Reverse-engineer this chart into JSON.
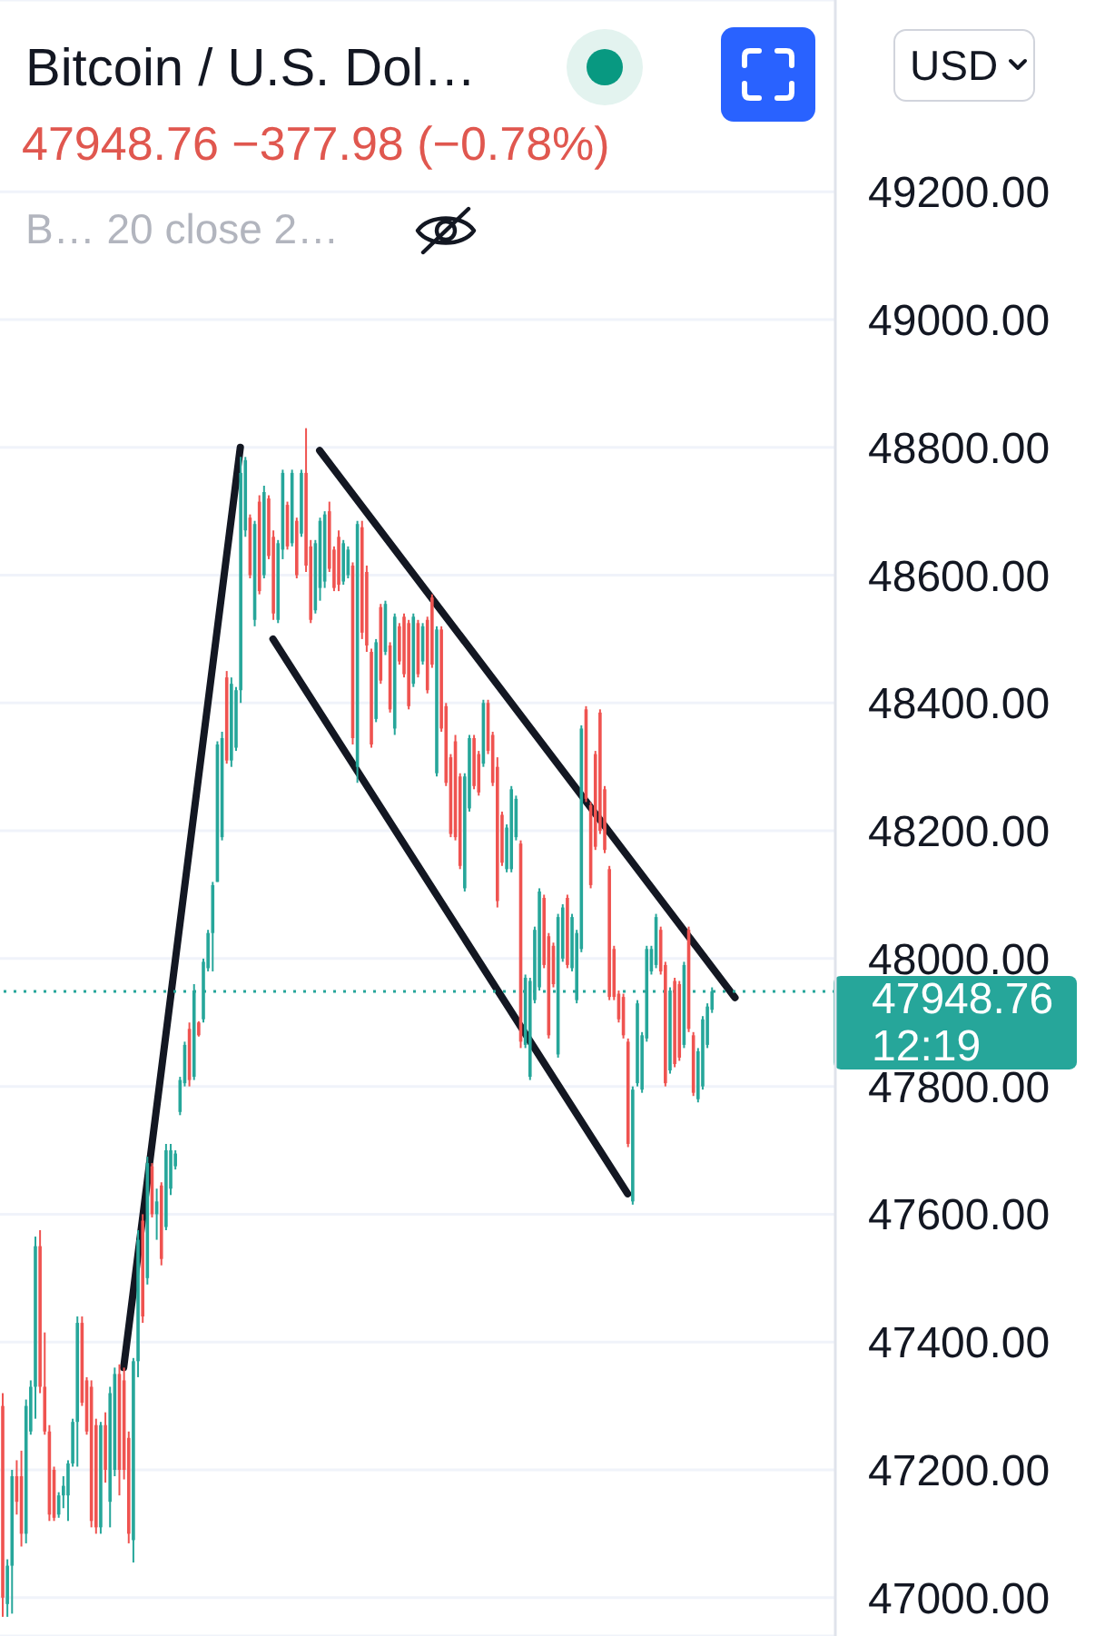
{
  "chart_data": {
    "type": "candlestick",
    "title": "Bitcoin / U.S. Dol…",
    "subtitle": "47948.76 −377.98 (−0.78%)",
    "ylabel": "USD",
    "annotations": [
      "B… 20 close 2…",
      "12:19"
    ],
    "categories": [
      null,
      null,
      null,
      null,
      null,
      null,
      null,
      null,
      null,
      null,
      null,
      null,
      null,
      null,
      null,
      null,
      null,
      null,
      null,
      null,
      null,
      null,
      null,
      null,
      null,
      null,
      null,
      null,
      null,
      null,
      null,
      null,
      null,
      null,
      null,
      null,
      null,
      null,
      null,
      null,
      null,
      null,
      null,
      null,
      null,
      null,
      null,
      null,
      null,
      null,
      null,
      null,
      null,
      null,
      null,
      null,
      null,
      null,
      null,
      null,
      null,
      null,
      null,
      null,
      null,
      null,
      null,
      null,
      null,
      null,
      null,
      null,
      null,
      null,
      null,
      null,
      null,
      null,
      null,
      null,
      null,
      null,
      null,
      null,
      null,
      null,
      null,
      null,
      null,
      null,
      null,
      null,
      null,
      null,
      null,
      null,
      null,
      null,
      null,
      null,
      null,
      null,
      null,
      null,
      null,
      null,
      null,
      null,
      null,
      null,
      null,
      null,
      null,
      null,
      null,
      null,
      null,
      null,
      null,
      null,
      null,
      null,
      null,
      null,
      null,
      null,
      null,
      null,
      null,
      null,
      null,
      null,
      null,
      null,
      null,
      null,
      null,
      null,
      null,
      null,
      null,
      null,
      null,
      null,
      null,
      null,
      null,
      null,
      null,
      null,
      null,
      null,
      null,
      null,
      null,
      null,
      null,
      null,
      null,
      null,
      null,
      null,
      null,
      null,
      null,
      null,
      null,
      null,
      null,
      null,
      null,
      null,
      null,
      null,
      null,
      null,
      null,
      null,
      null
    ],
    "ohlc": [
      [
        47300,
        47320,
        46970,
        47000
      ],
      [
        46990,
        47060,
        46970,
        47050
      ],
      [
        47050,
        47200,
        46975,
        47190
      ],
      [
        47190,
        47215,
        47130,
        47150
      ],
      [
        47190,
        47230,
        47080,
        47100
      ],
      [
        47100,
        47310,
        47085,
        47300
      ],
      [
        47260,
        47340,
        47255,
        47330
      ],
      [
        47330,
        47565,
        47280,
        47550
      ],
      [
        47550,
        47575,
        47320,
        47330
      ],
      [
        47330,
        47415,
        47255,
        47260
      ],
      [
        47260,
        47270,
        47120,
        47130
      ],
      [
        47200,
        47205,
        47120,
        47125
      ],
      [
        47130,
        47165,
        47125,
        47160
      ],
      [
        47160,
        47190,
        47140,
        47175
      ],
      [
        47160,
        47215,
        47120,
        47210
      ],
      [
        47210,
        47280,
        47205,
        47275
      ],
      [
        47275,
        47440,
        47205,
        47430
      ],
      [
        47430,
        47440,
        47300,
        47305
      ],
      [
        47340,
        47345,
        47255,
        47260
      ],
      [
        47330,
        47340,
        47110,
        47120
      ],
      [
        47270,
        47280,
        47100,
        47110
      ],
      [
        47110,
        47275,
        47100,
        47270
      ],
      [
        47270,
        47290,
        47180,
        47200
      ],
      [
        47150,
        47330,
        47110,
        47320
      ],
      [
        47200,
        47360,
        47190,
        47350
      ],
      [
        47350,
        47365,
        47160,
        47200
      ],
      [
        47340,
        47360,
        47185,
        47200
      ],
      [
        47250,
        47260,
        47085,
        47100
      ],
      [
        47090,
        47375,
        47055,
        47370
      ],
      [
        47370,
        47575,
        47345,
        47560
      ],
      [
        47590,
        47600,
        47430,
        47440
      ],
      [
        47500,
        47690,
        47490,
        47680
      ],
      [
        47675,
        47680,
        47595,
        47600
      ],
      [
        47600,
        47640,
        47560,
        47620
      ],
      [
        47645,
        47650,
        47520,
        47530
      ],
      [
        47580,
        47710,
        47575,
        47700
      ],
      [
        47640,
        47710,
        47630,
        47700
      ],
      [
        47675,
        47700,
        47670,
        47695
      ],
      [
        47760,
        47815,
        47755,
        47810
      ],
      [
        47805,
        47870,
        47800,
        47865
      ],
      [
        47890,
        47900,
        47800,
        47810
      ],
      [
        47815,
        47960,
        47810,
        47950
      ],
      [
        47900,
        47902,
        47878,
        47880
      ],
      [
        47905,
        48000,
        47900,
        47995
      ],
      [
        47985,
        48045,
        47980,
        48040
      ],
      [
        48040,
        48120,
        47980,
        48115
      ],
      [
        48120,
        48340,
        48120,
        48335
      ],
      [
        48190,
        48355,
        48185,
        48345
      ],
      [
        48440,
        48450,
        48305,
        48310
      ],
      [
        48310,
        48440,
        48300,
        48430
      ],
      [
        48330,
        48425,
        48325,
        48420
      ],
      [
        48420,
        48785,
        48400,
        48760
      ],
      [
        48670,
        48785,
        48660,
        48780
      ],
      [
        48690,
        48695,
        48595,
        48600
      ],
      [
        48530,
        48685,
        48520,
        48680
      ],
      [
        48715,
        48725,
        48570,
        48575
      ],
      [
        48600,
        48740,
        48595,
        48730
      ],
      [
        48720,
        48725,
        48625,
        48630
      ],
      [
        48660,
        48670,
        48530,
        48540
      ],
      [
        48530,
        48655,
        48525,
        48650
      ],
      [
        48640,
        48765,
        48625,
        48760
      ],
      [
        48710,
        48715,
        48640,
        48645
      ],
      [
        48650,
        48765,
        48645,
        48760
      ],
      [
        48685,
        48690,
        48595,
        48600
      ],
      [
        48665,
        48765,
        48660,
        48760
      ],
      [
        48760,
        48830,
        48605,
        48615
      ],
      [
        48645,
        48655,
        48525,
        48530
      ],
      [
        48545,
        48655,
        48540,
        48650
      ],
      [
        48580,
        48690,
        48560,
        48685
      ],
      [
        48590,
        48700,
        48580,
        48695
      ],
      [
        48700,
        48715,
        48605,
        48610
      ],
      [
        48640,
        48645,
        48575,
        48580
      ],
      [
        48660,
        48670,
        48575,
        48585
      ],
      [
        48590,
        48655,
        48585,
        48650
      ],
      [
        48600,
        48645,
        48595,
        48640
      ],
      [
        48615,
        48620,
        48335,
        48345
      ],
      [
        48300,
        48685,
        48275,
        48680
      ],
      [
        48675,
        48685,
        48500,
        48510
      ],
      [
        48605,
        48615,
        48480,
        48490
      ],
      [
        48480,
        48485,
        48330,
        48335
      ],
      [
        48375,
        48500,
        48370,
        48495
      ],
      [
        48550,
        48555,
        48430,
        48435
      ],
      [
        48480,
        48560,
        48475,
        48555
      ],
      [
        48490,
        48495,
        48385,
        48390
      ],
      [
        48360,
        48540,
        48350,
        48535
      ],
      [
        48520,
        48525,
        48460,
        48465
      ],
      [
        48535,
        48540,
        48440,
        48445
      ],
      [
        48525,
        48530,
        48390,
        48395
      ],
      [
        48430,
        48540,
        48425,
        48535
      ],
      [
        48525,
        48530,
        48440,
        48445
      ],
      [
        48465,
        48525,
        48460,
        48520
      ],
      [
        48530,
        48535,
        48415,
        48420
      ],
      [
        48565,
        48570,
        48455,
        48460
      ],
      [
        48290,
        48520,
        48285,
        48515
      ],
      [
        48515,
        48520,
        48355,
        48360
      ],
      [
        48395,
        48400,
        48270,
        48275
      ],
      [
        48315,
        48320,
        48190,
        48195
      ],
      [
        48340,
        48350,
        48185,
        48190
      ],
      [
        48285,
        48290,
        48140,
        48145
      ],
      [
        48110,
        48290,
        48105,
        48285
      ],
      [
        48235,
        48350,
        48230,
        48345
      ],
      [
        48345,
        48350,
        48265,
        48270
      ],
      [
        48320,
        48325,
        48255,
        48260
      ],
      [
        48305,
        48405,
        48300,
        48400
      ],
      [
        48400,
        48405,
        48320,
        48325
      ],
      [
        48350,
        48355,
        48270,
        48275
      ],
      [
        48300,
        48315,
        48080,
        48090
      ],
      [
        48225,
        48230,
        48145,
        48150
      ],
      [
        48140,
        48210,
        48135,
        48205
      ],
      [
        48140,
        48270,
        48135,
        48265
      ],
      [
        48190,
        48255,
        48185,
        48250
      ],
      [
        48180,
        48185,
        47860,
        47870
      ],
      [
        47865,
        47975,
        47860,
        47970
      ],
      [
        47815,
        47970,
        47810,
        47965
      ],
      [
        47935,
        48050,
        47930,
        48045
      ],
      [
        47955,
        48110,
        47950,
        48105
      ],
      [
        48095,
        48100,
        47985,
        47990
      ],
      [
        48035,
        48040,
        47875,
        47880
      ],
      [
        48020,
        48025,
        47955,
        47960
      ],
      [
        47850,
        48070,
        47845,
        48065
      ],
      [
        48000,
        48085,
        47995,
        48080
      ],
      [
        48095,
        48100,
        47985,
        47990
      ],
      [
        47985,
        48070,
        47980,
        48065
      ],
      [
        47935,
        48045,
        47930,
        48040
      ],
      [
        48015,
        48365,
        48010,
        48360
      ],
      [
        48390,
        48395,
        48245,
        48250
      ],
      [
        48240,
        48245,
        48110,
        48115
      ],
      [
        48320,
        48325,
        48170,
        48175
      ],
      [
        48385,
        48390,
        48195,
        48200
      ],
      [
        48265,
        48270,
        48165,
        48170
      ],
      [
        48140,
        48145,
        47935,
        47940
      ],
      [
        48015,
        48020,
        47935,
        47940
      ],
      [
        47945,
        47950,
        47900,
        47905
      ],
      [
        47940,
        47945,
        47875,
        47880
      ],
      [
        47870,
        47875,
        47705,
        47710
      ],
      [
        47620,
        47800,
        47615,
        47795
      ],
      [
        47805,
        47935,
        47800,
        47930
      ],
      [
        47795,
        47885,
        47790,
        47880
      ],
      [
        47875,
        48020,
        47870,
        48015
      ],
      [
        47980,
        48020,
        47975,
        48015
      ],
      [
        47990,
        48070,
        47985,
        48065
      ],
      [
        48045,
        48050,
        47975,
        47980
      ],
      [
        47990,
        47995,
        47800,
        47805
      ],
      [
        47825,
        47955,
        47820,
        47950
      ],
      [
        47965,
        47970,
        47830,
        47835
      ],
      [
        47960,
        47965,
        47840,
        47845
      ],
      [
        47865,
        47995,
        47860,
        47990
      ],
      [
        48045,
        48050,
        47885,
        47890
      ],
      [
        47880,
        47885,
        47785,
        47790
      ],
      [
        47780,
        47860,
        47775,
        47855
      ],
      [
        47800,
        47910,
        47795,
        47905
      ],
      [
        47865,
        47930,
        47860,
        47925
      ],
      [
        47920,
        47955,
        47915,
        47948.76
      ],
      null,
      null,
      null,
      null,
      null,
      null,
      null,
      null,
      null,
      null,
      null,
      null,
      null,
      null,
      null,
      null,
      null,
      null,
      null,
      null,
      null,
      null,
      null,
      null,
      null,
      null
    ],
    "colors": [
      "#ef5350",
      "#26a69a",
      "#26a69a",
      "#ef5350",
      "#ef5350",
      "#26a69a",
      "#26a69a",
      "#26a69a",
      "#ef5350",
      "#ef5350",
      "#ef5350",
      "#ef5350",
      "#26a69a",
      "#26a69a",
      "#26a69a",
      "#26a69a",
      "#26a69a",
      "#ef5350",
      "#ef5350",
      "#ef5350",
      "#ef5350",
      "#26a69a",
      "#ef5350",
      "#26a69a",
      "#26a69a",
      "#ef5350",
      "#ef5350",
      "#ef5350",
      "#26a69a",
      "#26a69a",
      "#ef5350",
      "#26a69a",
      "#ef5350",
      "#26a69a",
      "#ef5350",
      "#26a69a",
      "#26a69a",
      "#26a69a",
      "#26a69a",
      "#26a69a",
      "#ef5350",
      "#26a69a",
      "#ef5350",
      "#26a69a",
      "#26a69a",
      "#26a69a",
      "#26a69a",
      "#26a69a",
      "#ef5350",
      "#26a69a",
      "#26a69a",
      "#26a69a",
      "#26a69a",
      "#ef5350",
      "#26a69a",
      "#ef5350",
      "#26a69a",
      "#ef5350",
      "#ef5350",
      "#26a69a",
      "#26a69a",
      "#ef5350",
      "#26a69a",
      "#ef5350",
      "#26a69a",
      "#ef5350",
      "#ef5350",
      "#26a69a",
      "#26a69a",
      "#26a69a",
      "#ef5350",
      "#ef5350",
      "#ef5350",
      "#26a69a",
      "#26a69a",
      "#ef5350",
      "#26a69a",
      "#ef5350",
      "#ef5350",
      "#ef5350",
      "#26a69a",
      "#ef5350",
      "#26a69a",
      "#ef5350",
      "#26a69a",
      "#ef5350",
      "#ef5350",
      "#ef5350",
      "#26a69a",
      "#ef5350",
      "#26a69a",
      "#ef5350",
      "#ef5350",
      "#26a69a",
      "#ef5350",
      "#ef5350",
      "#ef5350",
      "#ef5350",
      "#ef5350",
      "#26a69a",
      "#26a69a",
      "#ef5350",
      "#ef5350",
      "#26a69a",
      "#ef5350",
      "#ef5350",
      "#ef5350",
      "#ef5350",
      "#26a69a",
      "#26a69a",
      "#26a69a",
      "#ef5350",
      "#26a69a",
      "#26a69a",
      "#26a69a",
      "#26a69a",
      "#ef5350",
      "#ef5350",
      "#ef5350",
      "#26a69a",
      "#26a69a",
      "#ef5350",
      "#26a69a",
      "#26a69a",
      "#26a69a",
      "#ef5350",
      "#ef5350",
      "#ef5350",
      "#ef5350",
      "#ef5350",
      "#ef5350",
      "#ef5350",
      "#ef5350",
      "#ef5350",
      "#ef5350",
      "#26a69a",
      "#26a69a",
      "#26a69a",
      "#26a69a",
      "#26a69a",
      "#26a69a",
      "#ef5350",
      "#ef5350",
      "#26a69a",
      "#ef5350",
      "#ef5350",
      "#26a69a",
      "#ef5350",
      "#ef5350",
      "#26a69a",
      "#26a69a",
      "#26a69a",
      "#26a69a",
      null,
      null,
      null,
      null,
      null,
      null,
      null,
      null,
      null,
      null,
      null,
      null,
      null,
      null,
      null,
      null,
      null,
      null,
      null,
      null,
      null,
      null,
      null,
      null,
      null,
      null
    ],
    "series": [
      {
        "type": "line",
        "color": "#131722",
        "values": [
          null,
          null,
          null,
          null,
          null,
          null,
          null,
          null,
          null,
          null,
          null,
          null,
          null,
          null,
          null,
          null,
          null,
          null,
          null,
          null,
          null,
          null,
          null,
          null,
          null,
          null,
          47360,
          null,
          null,
          null,
          null,
          null,
          null,
          null,
          null,
          null,
          null,
          null,
          null,
          null,
          null,
          null,
          null,
          null,
          null,
          null,
          null,
          null,
          null,
          null,
          null,
          48800,
          null,
          null,
          null,
          null,
          null,
          null,
          null,
          null,
          null,
          null,
          null,
          null,
          null,
          null,
          null,
          null,
          null,
          null,
          null,
          null,
          null,
          null,
          null,
          null,
          null,
          null,
          null,
          null,
          null,
          null,
          null,
          null,
          null,
          null,
          null,
          null,
          null,
          null,
          null,
          null,
          null,
          null,
          null,
          null,
          null,
          null,
          null,
          null,
          null,
          null,
          null,
          null,
          null,
          null,
          null,
          null,
          null,
          null,
          null,
          null,
          null,
          null,
          null,
          null,
          null,
          null,
          null,
          null,
          null,
          null,
          null,
          null,
          null,
          null,
          null,
          null,
          null,
          null,
          null,
          null,
          null,
          null,
          null,
          null,
          null,
          null,
          null,
          null,
          null,
          null,
          null,
          null,
          null,
          null,
          null,
          null,
          null,
          null,
          null,
          null,
          null,
          null,
          null,
          null,
          null,
          null,
          null,
          null,
          null,
          null,
          null,
          null,
          null,
          null,
          null,
          null,
          null,
          null,
          null,
          null,
          null,
          null,
          null,
          null,
          null,
          null,
          null
        ]
      },
      {
        "type": "line",
        "color": "#131722",
        "values": [
          null,
          null,
          null,
          null,
          null,
          null,
          null,
          null,
          null,
          null,
          null,
          null,
          null,
          null,
          null,
          null,
          null,
          null,
          null,
          null,
          null,
          null,
          null,
          null,
          null,
          null,
          null,
          null,
          null,
          null,
          null,
          null,
          null,
          null,
          null,
          null,
          null,
          null,
          null,
          null,
          null,
          null,
          null,
          null,
          null,
          null,
          null,
          null,
          null,
          null,
          null,
          null,
          null,
          null,
          null,
          null,
          null,
          null,
          null,
          null,
          null,
          null,
          null,
          null,
          null,
          null,
          null,
          null,
          48795,
          null,
          null,
          null,
          null,
          null,
          null,
          null,
          null,
          null,
          null,
          null,
          null,
          null,
          null,
          null,
          null,
          null,
          null,
          null,
          null,
          null,
          null,
          null,
          null,
          null,
          null,
          null,
          null,
          null,
          null,
          null,
          null,
          null,
          null,
          null,
          null,
          null,
          null,
          null,
          null,
          null,
          null,
          null,
          null,
          null,
          null,
          null,
          null,
          null,
          null,
          null,
          null,
          null,
          null,
          null,
          null,
          null,
          null,
          null,
          null,
          null,
          null,
          null,
          null,
          null,
          null,
          null,
          null,
          null,
          null,
          null,
          null,
          null,
          null,
          null,
          null,
          null,
          null,
          null,
          null,
          null,
          null,
          null,
          null,
          null,
          null,
          null,
          null,
          47939,
          null,
          null,
          null,
          null,
          null,
          null,
          null,
          null,
          null,
          null,
          null,
          null,
          null,
          null,
          null,
          null,
          null,
          null,
          null,
          null,
          null
        ]
      },
      {
        "type": "line",
        "color": "#131722",
        "values": [
          null,
          null,
          null,
          null,
          null,
          null,
          null,
          null,
          null,
          null,
          null,
          null,
          null,
          null,
          null,
          null,
          null,
          null,
          null,
          null,
          null,
          null,
          null,
          null,
          null,
          null,
          null,
          null,
          null,
          null,
          null,
          null,
          null,
          null,
          null,
          null,
          null,
          null,
          null,
          null,
          null,
          null,
          null,
          null,
          null,
          null,
          null,
          null,
          null,
          null,
          null,
          null,
          null,
          null,
          null,
          null,
          null,
          null,
          48500,
          null,
          null,
          null,
          null,
          null,
          null,
          null,
          null,
          null,
          null,
          null,
          null,
          null,
          null,
          null,
          null,
          null,
          null,
          null,
          null,
          null,
          null,
          null,
          null,
          null,
          null,
          null,
          null,
          null,
          null,
          null,
          null,
          null,
          null,
          null,
          null,
          null,
          null,
          null,
          null,
          null,
          null,
          null,
          null,
          null,
          null,
          null,
          null,
          null,
          null,
          null,
          null,
          null,
          null,
          null,
          null,
          null,
          null,
          null,
          null,
          null,
          null,
          null,
          null,
          null,
          null,
          null,
          null,
          null,
          null,
          null,
          null,
          null,
          null,
          null,
          47632,
          null,
          null,
          null,
          null,
          null,
          null,
          null,
          null,
          null,
          null,
          null,
          null,
          null,
          null,
          null,
          null,
          null,
          null,
          null,
          null,
          null,
          null,
          null,
          null,
          null,
          null,
          null,
          null,
          null,
          null,
          null,
          null,
          null,
          null,
          null,
          null,
          null,
          null,
          null,
          null,
          null,
          null,
          null,
          null
        ]
      }
    ],
    "ylim": [
      46940,
      49500
    ],
    "yticks": [
      {
        "value": 47000,
        "label": "47000.00"
      },
      {
        "value": 47200,
        "label": "47200.00"
      },
      {
        "value": 47400,
        "label": "47400.00"
      },
      {
        "value": 47600,
        "label": "47600.00"
      },
      {
        "value": 47800,
        "label": "47800.00"
      },
      {
        "value": 48000,
        "label": "48000.00"
      },
      {
        "value": 48200,
        "label": "48200.00"
      },
      {
        "value": 48400,
        "label": "48400.00"
      },
      {
        "value": 48600,
        "label": "48600.00"
      },
      {
        "value": 48800,
        "label": "48800.00"
      },
      {
        "value": 49000,
        "label": "49000.00"
      },
      {
        "value": 49200,
        "label": "49200.00"
      }
    ],
    "ref_lines": [
      {
        "axis": "y",
        "value": 47948.76,
        "label": "47948.76",
        "color": "#26a69a",
        "line_style": "dotted"
      }
    ],
    "grid": "y",
    "tick_labels": "y"
  }
}
